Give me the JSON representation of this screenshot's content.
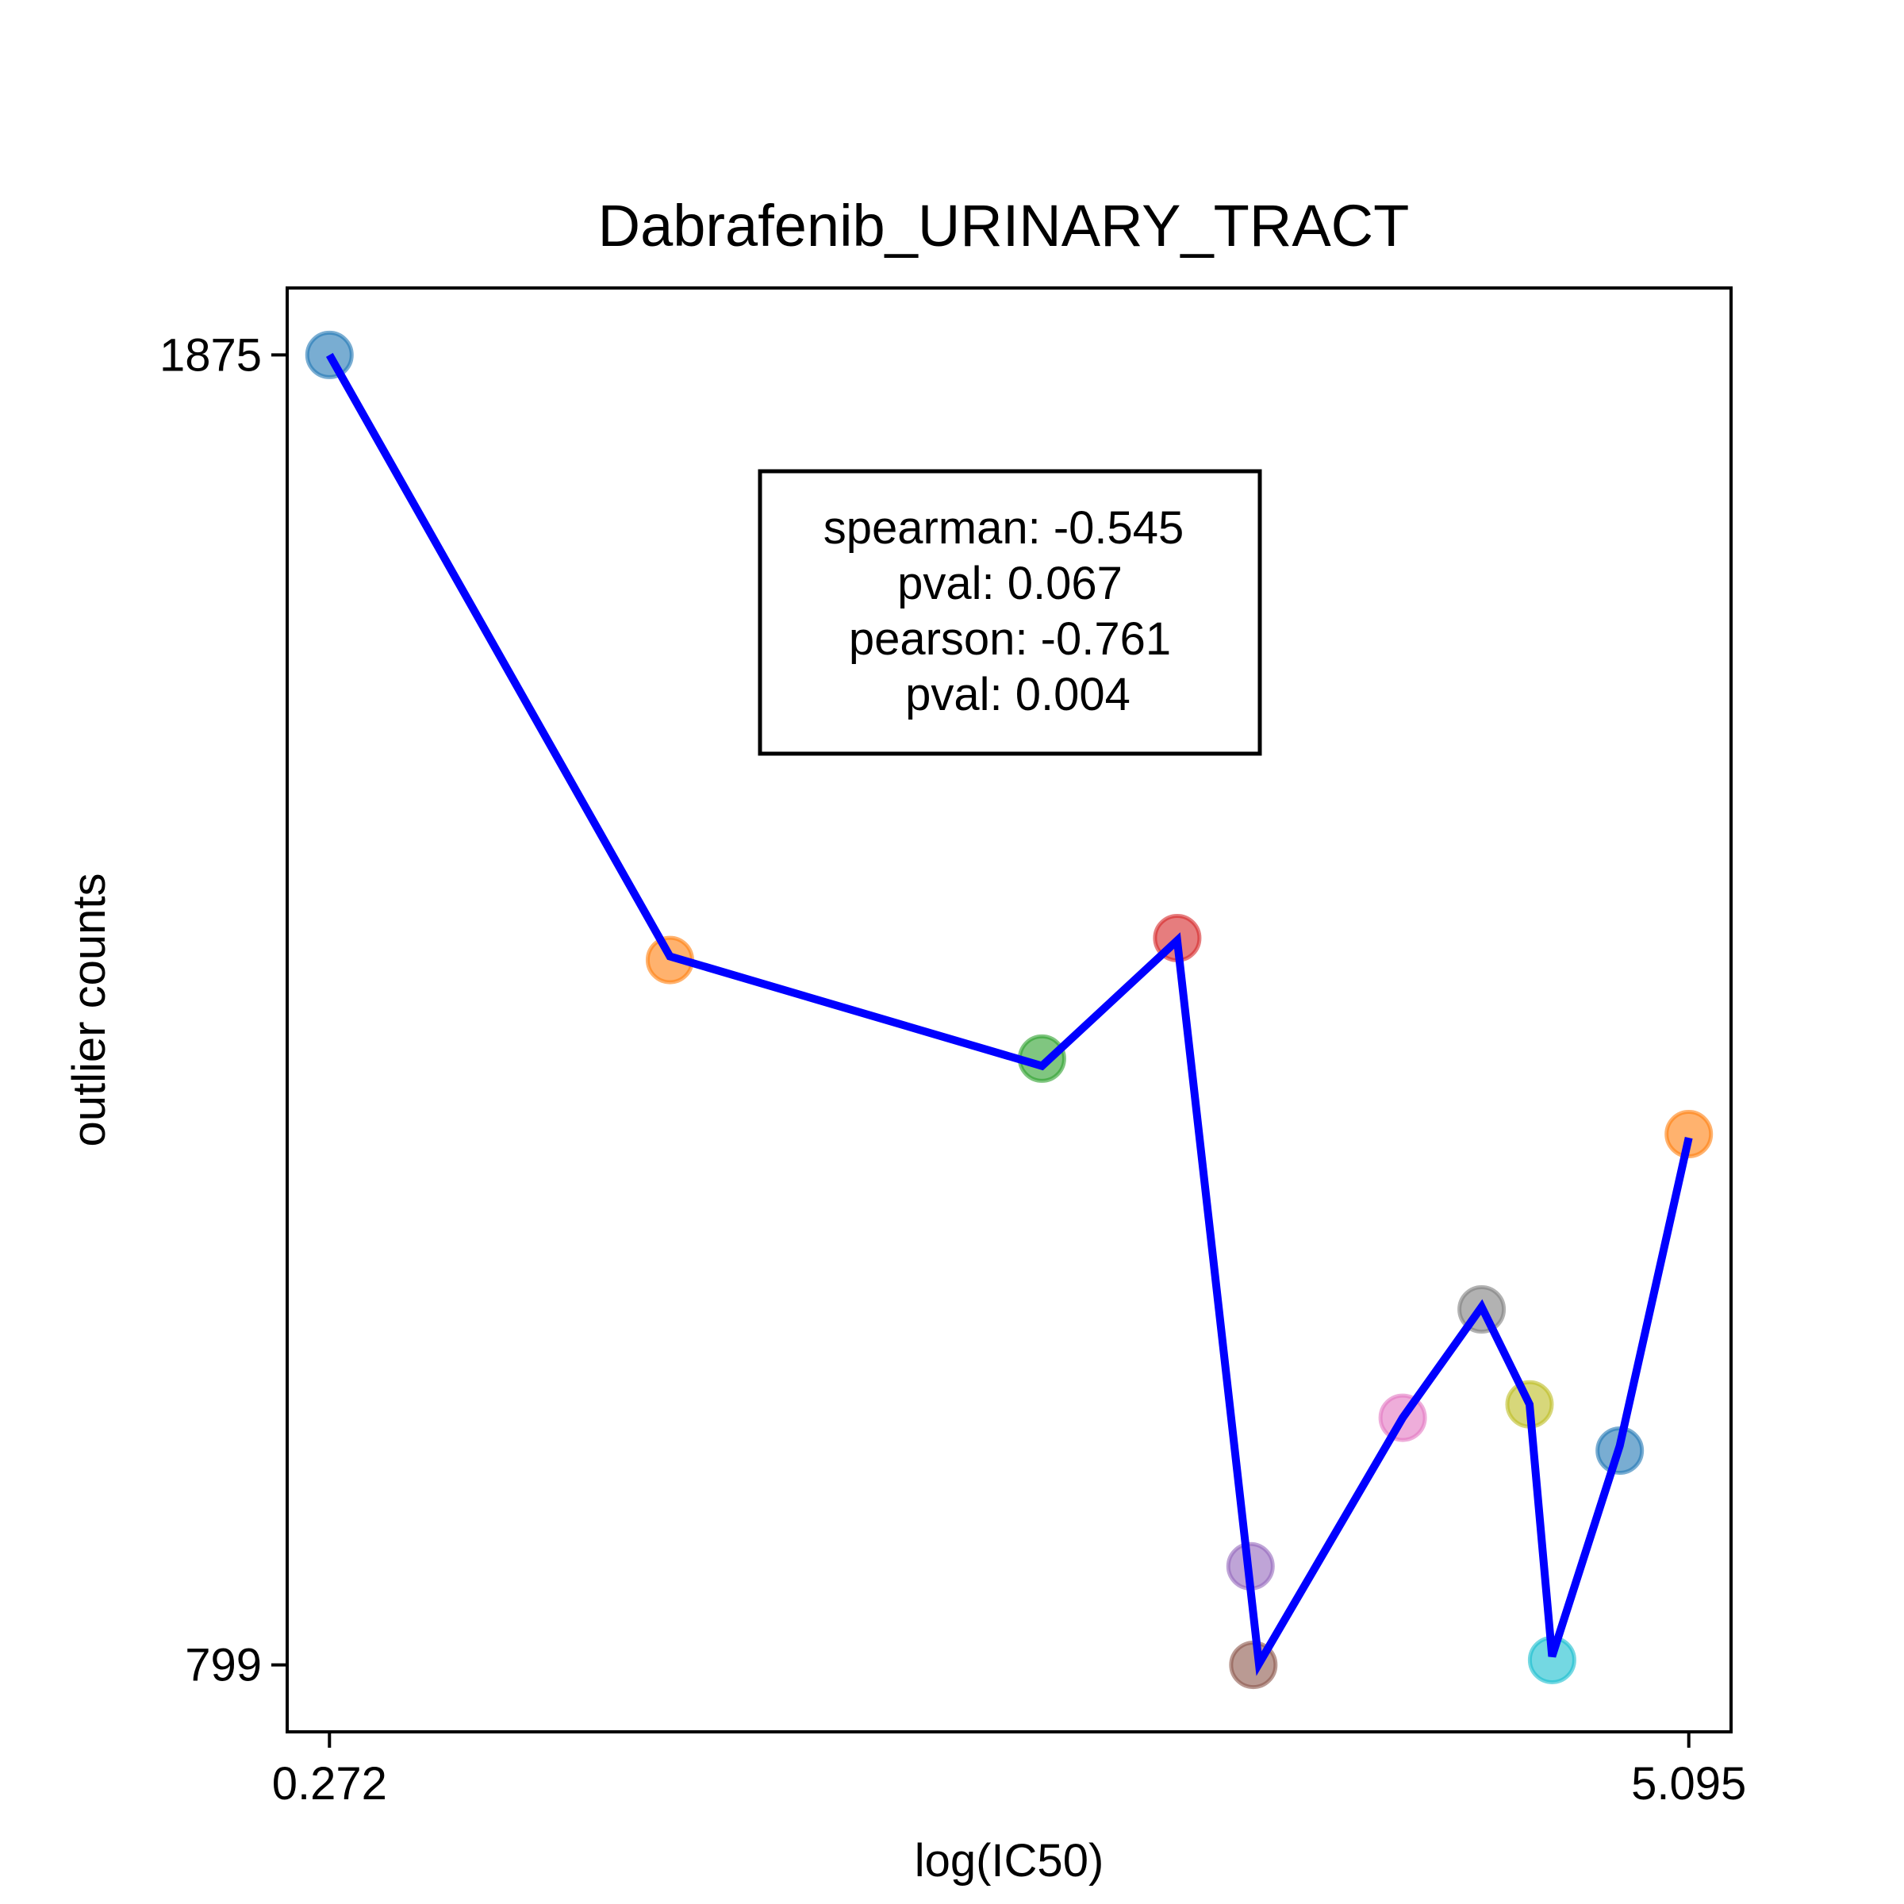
{
  "chart_data": {
    "type": "scatter",
    "title": "Dabrafenib_URINARY_TRACT",
    "xlabel": "log(IC50)",
    "ylabel": "outlier counts",
    "xlim": [
      0.122,
      5.245
    ],
    "ylim": [
      744,
      1930
    ],
    "x_ticks": [
      {
        "value": 0.272,
        "label": "0.272"
      },
      {
        "value": 5.095,
        "label": "5.095"
      }
    ],
    "y_ticks": [
      {
        "value": 1875,
        "label": "1875"
      },
      {
        "value": 799,
        "label": "799"
      }
    ],
    "grid": false,
    "fit_line_color": "#0000ff",
    "points": [
      {
        "x": 0.272,
        "y": 1875,
        "color": "#1f77b4"
      },
      {
        "x": 1.48,
        "y": 1378,
        "color": "#ff7f0e"
      },
      {
        "x": 2.8,
        "y": 1297,
        "color": "#2ca02c"
      },
      {
        "x": 3.28,
        "y": 1396,
        "color": "#d62728"
      },
      {
        "x": 3.54,
        "y": 880,
        "color": "#9467bd"
      },
      {
        "x": 3.55,
        "y": 799,
        "color": "#8c564b"
      },
      {
        "x": 4.08,
        "y": 1002,
        "color": "#e377c2"
      },
      {
        "x": 4.36,
        "y": 1091,
        "color": "#7f7f7f"
      },
      {
        "x": 4.53,
        "y": 1013,
        "color": "#bcbd22"
      },
      {
        "x": 4.61,
        "y": 803,
        "color": "#17becf"
      },
      {
        "x": 4.85,
        "y": 975,
        "color": "#1f77b4"
      },
      {
        "x": 5.095,
        "y": 1235,
        "color": "#ff7f0e"
      }
    ],
    "line": [
      {
        "x": 0.272,
        "y": 1875
      },
      {
        "x": 1.48,
        "y": 1381
      },
      {
        "x": 2.8,
        "y": 1291
      },
      {
        "x": 3.28,
        "y": 1394
      },
      {
        "x": 3.57,
        "y": 800
      },
      {
        "x": 4.08,
        "y": 1002
      },
      {
        "x": 4.36,
        "y": 1093
      },
      {
        "x": 4.53,
        "y": 1013
      },
      {
        "x": 4.61,
        "y": 806
      },
      {
        "x": 4.85,
        "y": 979
      },
      {
        "x": 5.095,
        "y": 1232
      }
    ],
    "stats": {
      "spearman_label": "spearman: -0.545",
      "spearman_pval_label": "pval: 0.067",
      "pearson_label": "pearson: -0.761",
      "pearson_pval_label": "pval: 0.004"
    }
  }
}
